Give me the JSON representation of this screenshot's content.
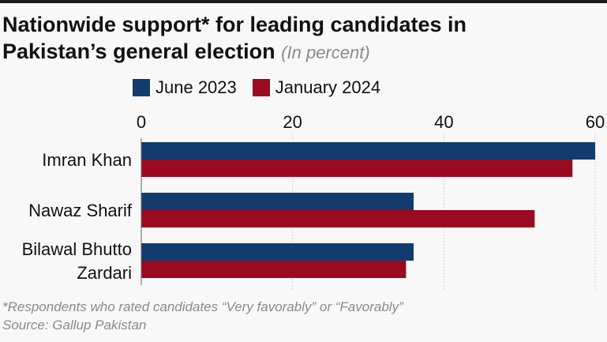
{
  "title": {
    "line1": "Nationwide support* for leading candidates in",
    "line2": "Pakistan’s general election",
    "unit": "(In percent)"
  },
  "footnote": {
    "note": "*Respondents who rated candidates “Very favorably” or “Favorably”",
    "source": "Source: Gallup Pakistan"
  },
  "colors": {
    "june_2023": "#123c6d",
    "january_2024": "#9b0a20"
  },
  "chart_data": {
    "type": "bar",
    "orientation": "horizontal",
    "categories": [
      [
        "Imran Khan"
      ],
      [
        "Nawaz Sharif"
      ],
      [
        "Bilawal Bhutto",
        "Zardari"
      ]
    ],
    "series": [
      {
        "name": "June 2023",
        "values": [
          60,
          36,
          36
        ]
      },
      {
        "name": "January 2024",
        "values": [
          57,
          52,
          35
        ]
      }
    ],
    "xlim": [
      0,
      60
    ],
    "xticks": [
      0,
      20,
      40,
      60
    ],
    "grid": true,
    "legend": "top-left"
  }
}
